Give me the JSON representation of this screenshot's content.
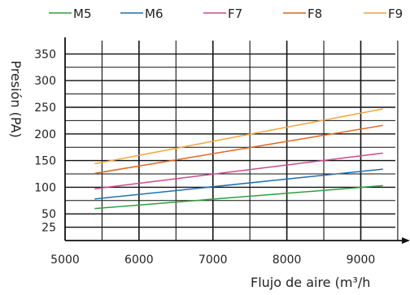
{
  "chart_data": {
    "type": "line",
    "xlabel": "Flujo de aire (m³/h",
    "ylabel": "Presión  (PA)",
    "xlim": [
      5000,
      9600
    ],
    "ylim": [
      0,
      375
    ],
    "x_ticks": [
      5000,
      6000,
      7000,
      8000,
      9000
    ],
    "y_ticks": [
      25,
      50,
      100,
      150,
      200,
      250,
      300,
      350
    ],
    "grid": true,
    "legend_position": "top",
    "series": [
      {
        "name": "M5",
        "color": "#2e9e3f",
        "x": [
          5400,
          9300
        ],
        "y": [
          60,
          103
        ]
      },
      {
        "name": "M6",
        "color": "#1f6fb0",
        "x": [
          5400,
          9300
        ],
        "y": [
          78,
          134
        ]
      },
      {
        "name": "F7",
        "color": "#cc4a90",
        "x": [
          5400,
          9300
        ],
        "y": [
          97,
          164
        ]
      },
      {
        "name": "F8",
        "color": "#e0661f",
        "x": [
          5400,
          9300
        ],
        "y": [
          126,
          216
        ]
      },
      {
        "name": "F9",
        "color": "#f2a43a",
        "x": [
          5400,
          9300
        ],
        "y": [
          144,
          247
        ]
      }
    ]
  }
}
